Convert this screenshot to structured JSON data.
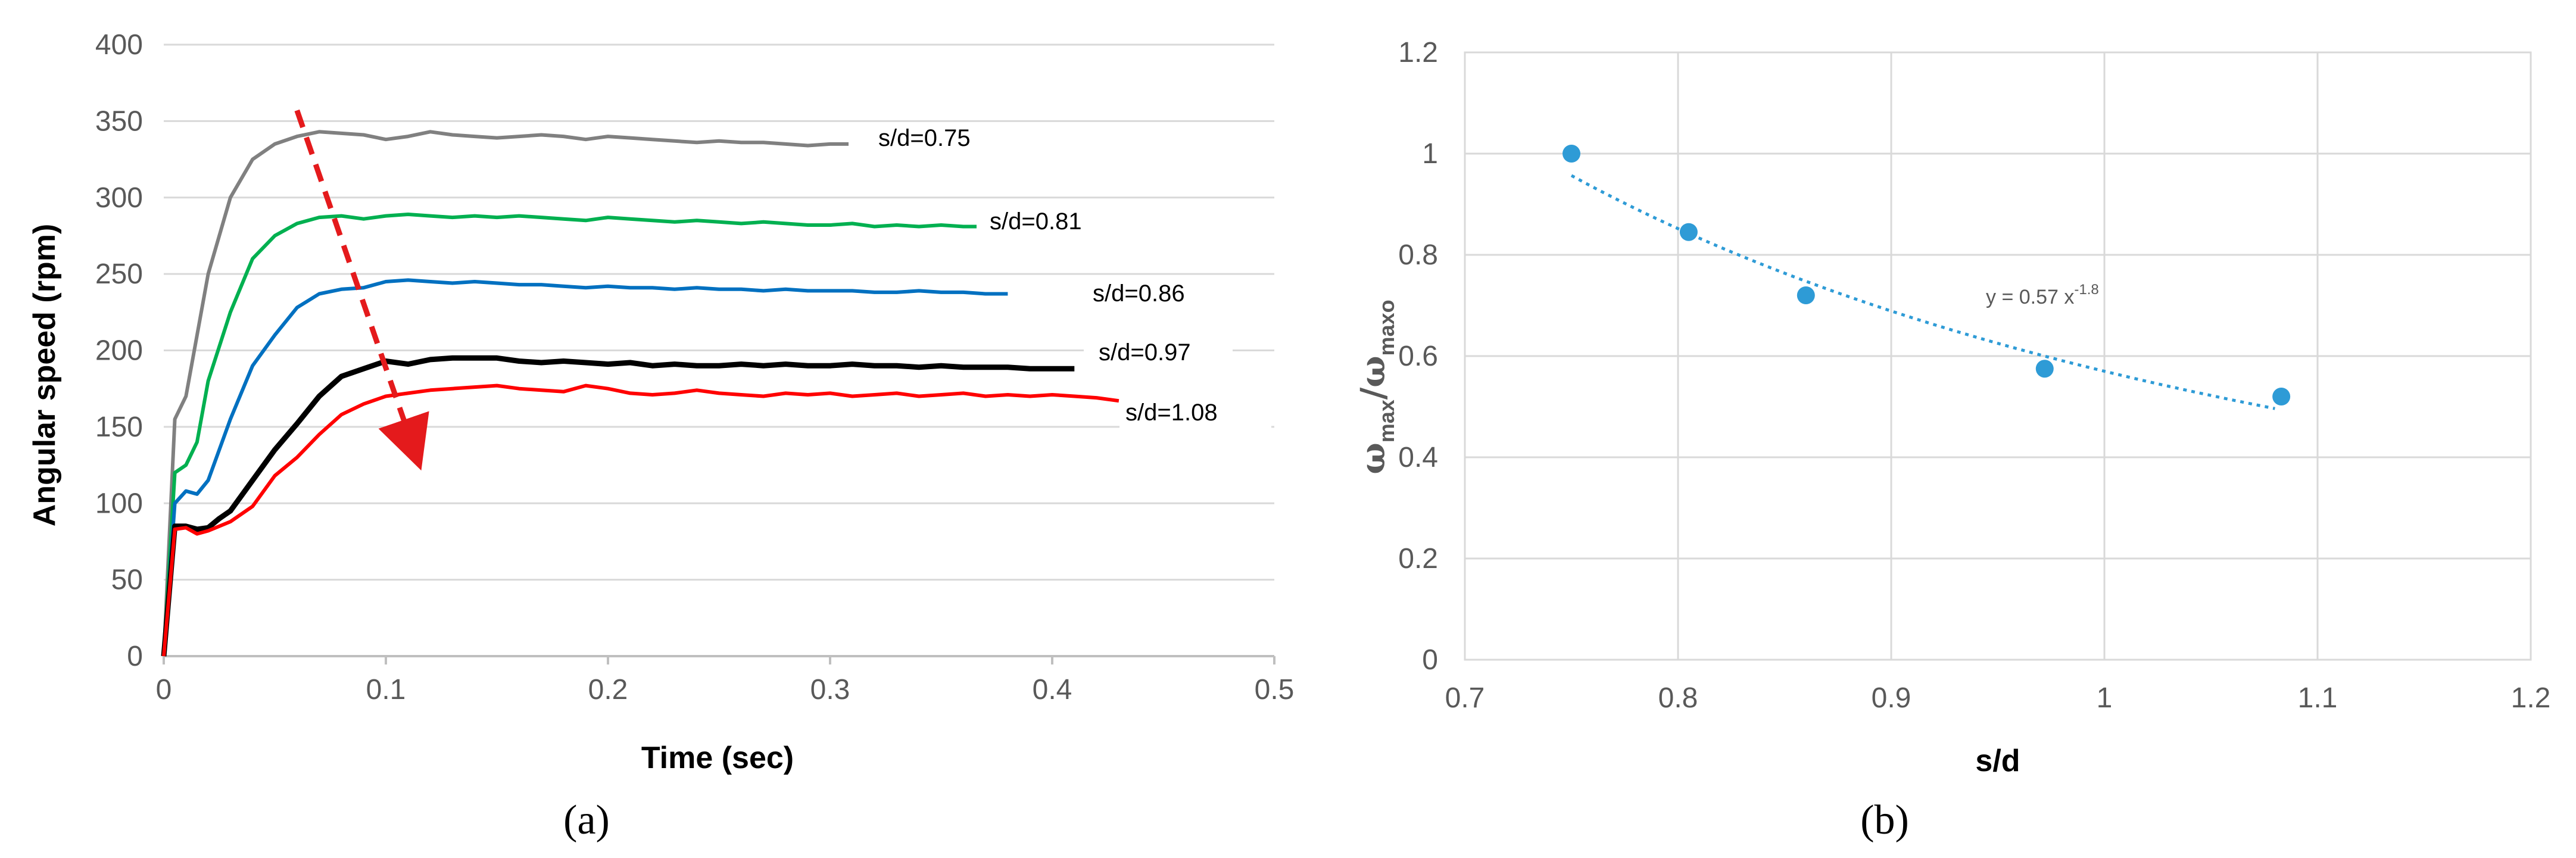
{
  "chart_data": [
    {
      "type": "line",
      "panel_label": "(a)",
      "xlabel": "Time (sec)",
      "ylabel": "Angular speed (rpm)",
      "xlim": [
        0,
        0.5
      ],
      "ylim": [
        0,
        400
      ],
      "x_ticks": [
        "0",
        "0.1",
        "0.2",
        "0.3",
        "0.4",
        "0.5"
      ],
      "y_ticks": [
        "0",
        "50",
        "100",
        "150",
        "200",
        "250",
        "300",
        "350",
        "400"
      ],
      "grid": "horizontal",
      "annotation": "dashed red arrow indicating decreasing speed with increasing s/d",
      "series": [
        {
          "name": "s/d=0.75",
          "color": "#808080",
          "x": [
            0,
            0.005,
            0.01,
            0.02,
            0.03,
            0.04,
            0.05,
            0.06,
            0.07,
            0.08,
            0.09,
            0.1,
            0.11,
            0.12,
            0.13,
            0.14,
            0.15,
            0.16,
            0.17,
            0.18,
            0.19,
            0.2,
            0.21,
            0.22,
            0.23,
            0.24,
            0.25,
            0.26,
            0.27,
            0.28,
            0.29,
            0.3,
            0.31
          ],
          "y": [
            0,
            155,
            170,
            250,
            300,
            325,
            335,
            340,
            343,
            342,
            341,
            338,
            340,
            343,
            341,
            340,
            339,
            340,
            341,
            340,
            338,
            340,
            339,
            338,
            337,
            336,
            337,
            336,
            336,
            335,
            334,
            335,
            335
          ]
        },
        {
          "name": "s/d=0.81",
          "color": "#00b050",
          "x": [
            0,
            0.005,
            0.01,
            0.015,
            0.02,
            0.03,
            0.04,
            0.05,
            0.06,
            0.07,
            0.08,
            0.09,
            0.1,
            0.11,
            0.12,
            0.13,
            0.14,
            0.15,
            0.16,
            0.17,
            0.18,
            0.19,
            0.2,
            0.21,
            0.22,
            0.23,
            0.24,
            0.25,
            0.26,
            0.27,
            0.28,
            0.29,
            0.3,
            0.31,
            0.32,
            0.33,
            0.34,
            0.35,
            0.36,
            0.37
          ],
          "y": [
            0,
            120,
            125,
            140,
            180,
            225,
            260,
            275,
            283,
            287,
            288,
            286,
            288,
            289,
            288,
            287,
            288,
            287,
            288,
            287,
            286,
            285,
            287,
            286,
            285,
            284,
            285,
            284,
            283,
            284,
            283,
            282,
            282,
            283,
            281,
            282,
            281,
            282,
            281,
            281
          ]
        },
        {
          "name": "s/d=0.86",
          "color": "#0070c0",
          "x": [
            0,
            0.005,
            0.01,
            0.015,
            0.02,
            0.03,
            0.04,
            0.05,
            0.06,
            0.07,
            0.08,
            0.09,
            0.1,
            0.11,
            0.12,
            0.13,
            0.14,
            0.15,
            0.16,
            0.17,
            0.18,
            0.19,
            0.2,
            0.21,
            0.22,
            0.23,
            0.24,
            0.25,
            0.26,
            0.27,
            0.28,
            0.29,
            0.3,
            0.31,
            0.32,
            0.33,
            0.34,
            0.35,
            0.36,
            0.37,
            0.38
          ],
          "y": [
            0,
            100,
            108,
            106,
            115,
            155,
            190,
            210,
            228,
            237,
            240,
            241,
            245,
            246,
            245,
            244,
            245,
            244,
            243,
            243,
            242,
            241,
            242,
            241,
            241,
            240,
            241,
            240,
            240,
            239,
            240,
            239,
            239,
            239,
            238,
            238,
            239,
            238,
            238,
            237,
            237
          ]
        },
        {
          "name": "s/d=0.97",
          "color": "#000000",
          "x": [
            0,
            0.005,
            0.01,
            0.015,
            0.02,
            0.025,
            0.03,
            0.04,
            0.05,
            0.06,
            0.07,
            0.08,
            0.09,
            0.1,
            0.11,
            0.12,
            0.13,
            0.14,
            0.15,
            0.16,
            0.17,
            0.18,
            0.19,
            0.2,
            0.21,
            0.22,
            0.23,
            0.24,
            0.25,
            0.26,
            0.27,
            0.28,
            0.29,
            0.3,
            0.31,
            0.32,
            0.33,
            0.34,
            0.35,
            0.36,
            0.37,
            0.38,
            0.39,
            0.4,
            0.41
          ],
          "y": [
            0,
            85,
            85,
            83,
            84,
            90,
            95,
            115,
            135,
            152,
            170,
            183,
            188,
            193,
            191,
            194,
            195,
            195,
            195,
            193,
            192,
            193,
            192,
            191,
            192,
            190,
            191,
            190,
            190,
            191,
            190,
            191,
            190,
            190,
            191,
            190,
            190,
            189,
            190,
            189,
            189,
            189,
            188,
            188,
            188
          ]
        },
        {
          "name": "s/d=1.08",
          "color": "#ff0000",
          "x": [
            0,
            0.005,
            0.01,
            0.015,
            0.02,
            0.03,
            0.04,
            0.05,
            0.06,
            0.07,
            0.08,
            0.09,
            0.1,
            0.11,
            0.12,
            0.13,
            0.14,
            0.15,
            0.16,
            0.17,
            0.18,
            0.19,
            0.2,
            0.21,
            0.22,
            0.23,
            0.24,
            0.25,
            0.26,
            0.27,
            0.28,
            0.29,
            0.3,
            0.31,
            0.32,
            0.33,
            0.34,
            0.35,
            0.36,
            0.37,
            0.38,
            0.39,
            0.4,
            0.41,
            0.42,
            0.43
          ],
          "y": [
            0,
            83,
            84,
            80,
            82,
            88,
            98,
            118,
            130,
            145,
            158,
            165,
            170,
            172,
            174,
            175,
            176,
            177,
            175,
            174,
            173,
            177,
            175,
            172,
            171,
            172,
            174,
            172,
            171,
            170,
            172,
            171,
            172,
            170,
            171,
            172,
            170,
            171,
            172,
            170,
            171,
            170,
            171,
            170,
            169,
            167
          ]
        }
      ]
    },
    {
      "type": "scatter",
      "panel_label": "(b)",
      "xlabel": "s/d",
      "ylabel_main": "ω",
      "ylabel_sub1": "max",
      "ylabel_sep": "/ω",
      "ylabel_sub2": "maxo",
      "xlim": [
        0.7,
        1.2
      ],
      "ylim": [
        0,
        1.2
      ],
      "x_ticks": [
        "0.7",
        "0.8",
        "0.9",
        "1",
        "1.1",
        "1.2"
      ],
      "y_ticks": [
        "0",
        "0.2",
        "0.4",
        "0.6",
        "0.8",
        "1",
        "1.2"
      ],
      "grid": "both",
      "color": "#2e9bd6",
      "points": {
        "x": [
          0.75,
          0.805,
          0.86,
          0.972,
          1.083
        ],
        "y": [
          1.0,
          0.845,
          0.72,
          0.575,
          0.52
        ]
      },
      "trendline": {
        "base": "y = 0.57 x",
        "exponent": "-1.8",
        "coef": 0.57,
        "power": -1.8,
        "x_range": [
          0.75,
          1.08
        ]
      }
    }
  ]
}
